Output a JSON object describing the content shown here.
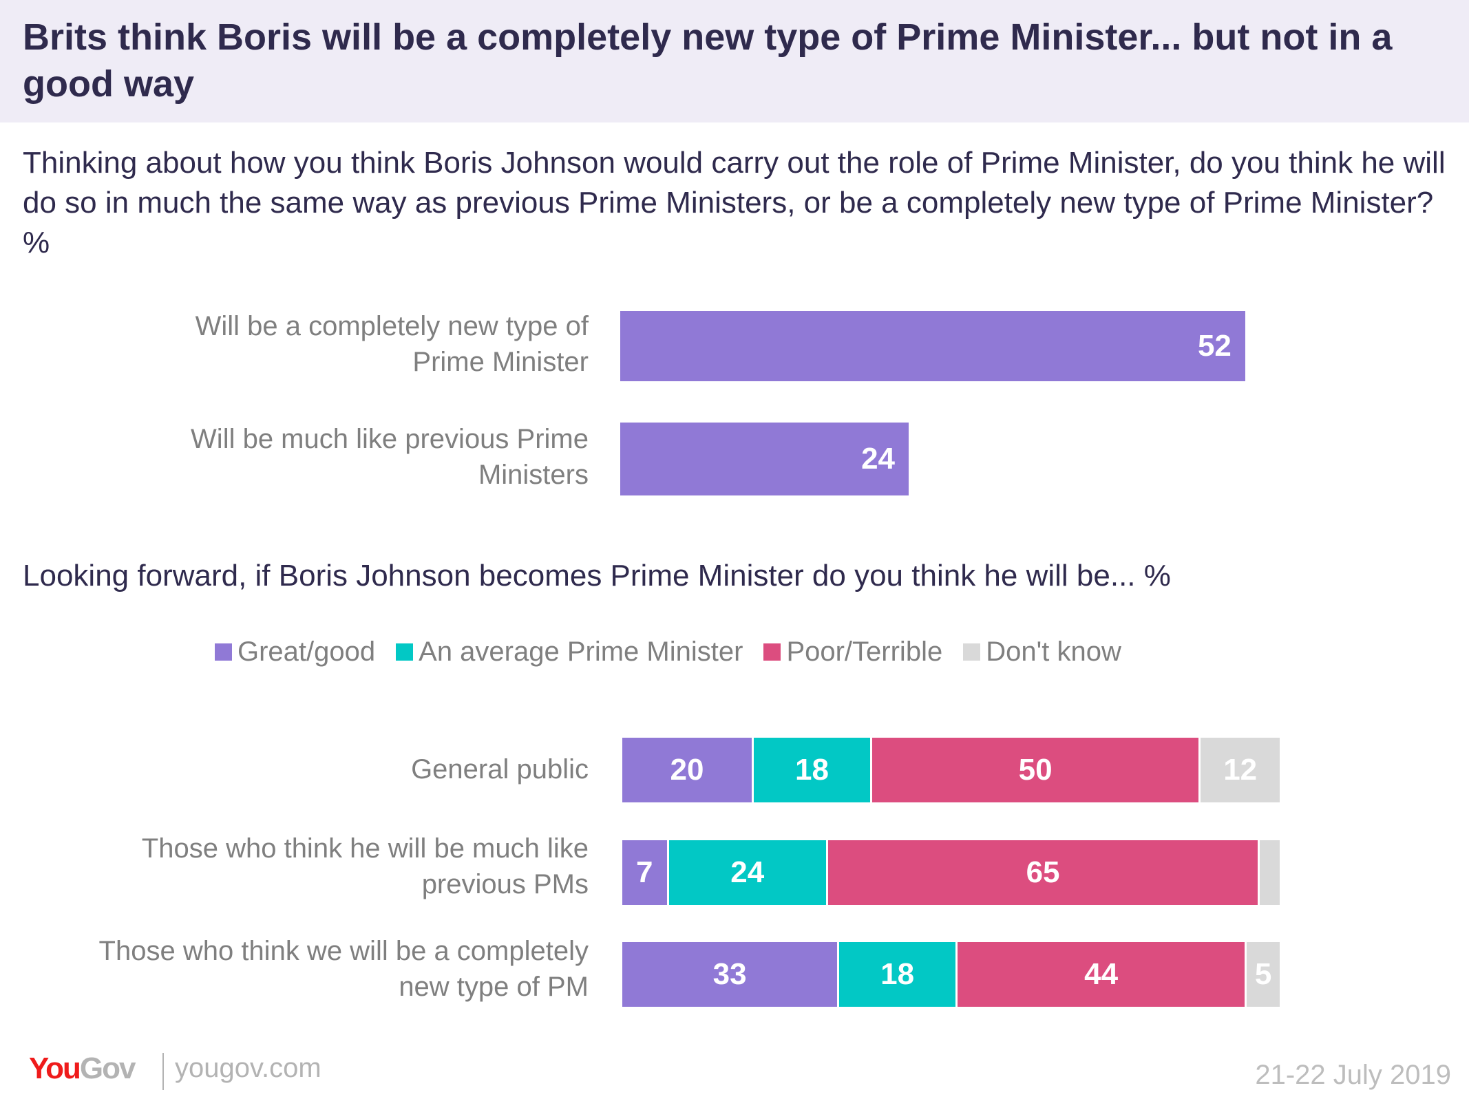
{
  "header": {
    "title": "Brits think Boris will be a completely new type of Prime Minister... but not in a good way"
  },
  "question1": "Thinking about how you think Boris Johnson would carry out the role of Prime Minister, do you think he will do so in much the same way as previous Prime Ministers, or be a completely new type of Prime Minister? %",
  "question2": "Looking forward, if Boris Johnson becomes Prime Minister do you think he will be... %",
  "footer": {
    "logo_you": "You",
    "logo_gov": "Gov",
    "url": "yougov.com",
    "date": "21-22 July 2019"
  },
  "colors": {
    "purple": "#9079d6",
    "teal": "#02c8c5",
    "pink": "#dc4d7f",
    "grey": "#d9d9d9",
    "title": "#2f2a4d",
    "header_bg": "#efecf6"
  },
  "chart_data": [
    {
      "type": "bar",
      "orientation": "horizontal",
      "title": "Thinking about how you think Boris Johnson would carry out the role of Prime Minister, do you think he will do so in much the same way as previous Prime Ministers, or be a completely new type of Prime Minister? %",
      "categories": [
        "Will be a completely new type of Prime Minister",
        "Will be much like previous Prime Ministers"
      ],
      "values": [
        52,
        24
      ],
      "xlabel": "",
      "ylabel": "",
      "xlim": [
        0,
        100
      ],
      "grid": false
    },
    {
      "type": "bar",
      "orientation": "horizontal",
      "stacked": true,
      "title": "Looking forward, if Boris Johnson becomes Prime Minister do you think he will be... %",
      "categories": [
        "General public",
        "Those who think he will be much like previous PMs",
        "Those who think we will be a completely new type of PM"
      ],
      "legend_position": "top",
      "series": [
        {
          "name": "Great/good",
          "color": "#9079d6",
          "values": [
            20,
            7,
            33
          ],
          "labels": [
            "20",
            "7",
            "33"
          ]
        },
        {
          "name": "An average Prime Minister",
          "color": "#02c8c5",
          "values": [
            18,
            24,
            18
          ],
          "labels": [
            "18",
            "24",
            "18"
          ]
        },
        {
          "name": "Poor/Terrible",
          "color": "#dc4d7f",
          "values": [
            50,
            65,
            44
          ],
          "labels": [
            "50",
            "65",
            "44"
          ]
        },
        {
          "name": "Don't know",
          "color": "#d9d9d9",
          "values": [
            12,
            3,
            5
          ],
          "labels": [
            "12",
            "",
            "5"
          ]
        }
      ],
      "xlim": [
        0,
        100
      ],
      "grid": false
    }
  ]
}
